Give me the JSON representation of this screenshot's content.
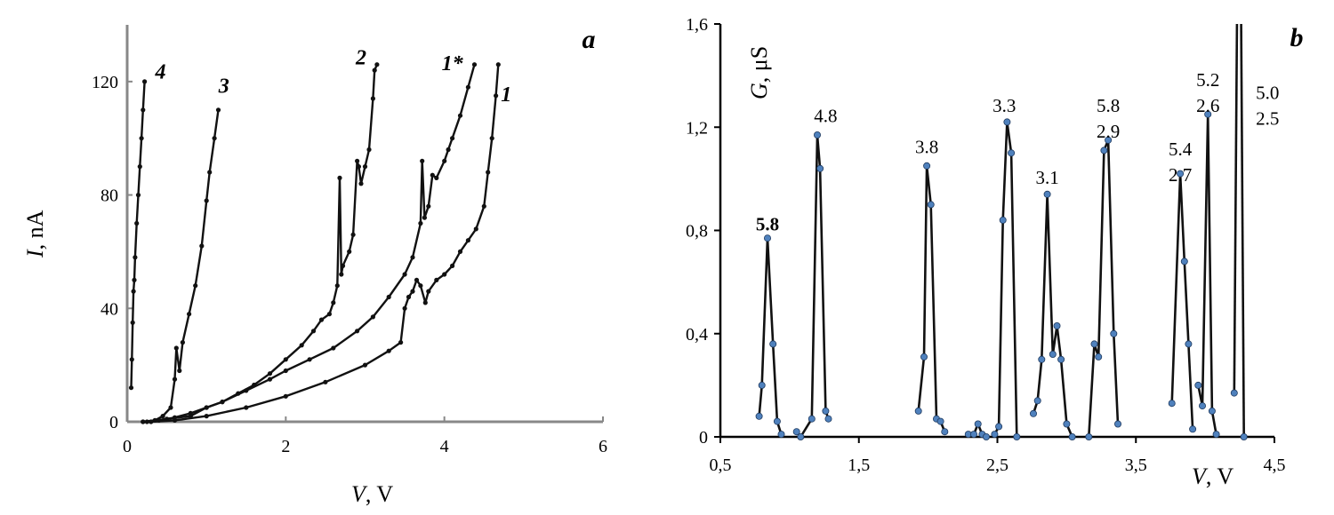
{
  "chart_data": [
    {
      "type": "line",
      "panel_label": "a",
      "xlabel_var": "V",
      "xlabel_unit": ", V",
      "ylabel_var": "I",
      "ylabel_unit": ", nA",
      "xlim": [
        0,
        6
      ],
      "ylim": [
        0,
        140
      ],
      "xticks": [
        0,
        2,
        4,
        6
      ],
      "yticks": [
        0,
        40,
        80,
        120
      ],
      "xtick_labels": [
        "0",
        "2",
        "4",
        "6"
      ],
      "ytick_labels": [
        "0",
        "40",
        "80",
        "120"
      ],
      "series": [
        {
          "name": "4",
          "points": [
            [
              0.05,
              12
            ],
            [
              0.06,
              22
            ],
            [
              0.07,
              35
            ],
            [
              0.08,
              46
            ],
            [
              0.09,
              50
            ],
            [
              0.1,
              58
            ],
            [
              0.12,
              70
            ],
            [
              0.14,
              80
            ],
            [
              0.16,
              90
            ],
            [
              0.18,
              100
            ],
            [
              0.2,
              110
            ],
            [
              0.22,
              120
            ]
          ]
        },
        {
          "name": "3",
          "points": [
            [
              0.25,
              0
            ],
            [
              0.35,
              0.5
            ],
            [
              0.45,
              2
            ],
            [
              0.55,
              5
            ],
            [
              0.6,
              15
            ],
            [
              0.62,
              26
            ],
            [
              0.66,
              18
            ],
            [
              0.7,
              28
            ],
            [
              0.78,
              38
            ],
            [
              0.86,
              48
            ],
            [
              0.94,
              62
            ],
            [
              1.0,
              78
            ],
            [
              1.04,
              88
            ],
            [
              1.1,
              100
            ],
            [
              1.15,
              110
            ]
          ]
        },
        {
          "name": "2",
          "points": [
            [
              0.2,
              0
            ],
            [
              0.4,
              0.5
            ],
            [
              0.6,
              1.5
            ],
            [
              0.8,
              3
            ],
            [
              1.0,
              5
            ],
            [
              1.2,
              7
            ],
            [
              1.4,
              10
            ],
            [
              1.6,
              13
            ],
            [
              1.8,
              17
            ],
            [
              2.0,
              22
            ],
            [
              2.2,
              27
            ],
            [
              2.35,
              32
            ],
            [
              2.45,
              36
            ],
            [
              2.55,
              38
            ],
            [
              2.6,
              42
            ],
            [
              2.65,
              48
            ],
            [
              2.68,
              86
            ],
            [
              2.7,
              52
            ],
            [
              2.72,
              55
            ],
            [
              2.8,
              60
            ],
            [
              2.85,
              66
            ],
            [
              2.9,
              92
            ],
            [
              2.92,
              90
            ],
            [
              2.95,
              84
            ],
            [
              3.0,
              90
            ],
            [
              3.05,
              96
            ],
            [
              3.1,
              114
            ],
            [
              3.12,
              124
            ],
            [
              3.15,
              126
            ]
          ]
        },
        {
          "name": "1*",
          "points": [
            [
              0.2,
              0
            ],
            [
              0.5,
              1
            ],
            [
              0.8,
              2
            ],
            [
              1.0,
              5
            ],
            [
              1.2,
              7
            ],
            [
              1.5,
              11
            ],
            [
              1.8,
              15
            ],
            [
              2.0,
              18
            ],
            [
              2.3,
              22
            ],
            [
              2.6,
              26
            ],
            [
              2.9,
              32
            ],
            [
              3.1,
              37
            ],
            [
              3.3,
              44
            ],
            [
              3.5,
              52
            ],
            [
              3.6,
              58
            ],
            [
              3.7,
              70
            ],
            [
              3.72,
              92
            ],
            [
              3.75,
              72
            ],
            [
              3.8,
              76
            ],
            [
              3.85,
              87
            ],
            [
              3.9,
              86
            ],
            [
              4.0,
              92
            ],
            [
              4.05,
              96
            ],
            [
              4.1,
              100
            ],
            [
              4.2,
              108
            ],
            [
              4.3,
              118
            ],
            [
              4.38,
              126
            ]
          ]
        },
        {
          "name": "1",
          "points": [
            [
              0.3,
              0
            ],
            [
              0.6,
              0.5
            ],
            [
              1.0,
              2
            ],
            [
              1.5,
              5
            ],
            [
              2.0,
              9
            ],
            [
              2.5,
              14
            ],
            [
              3.0,
              20
            ],
            [
              3.3,
              25
            ],
            [
              3.45,
              28
            ],
            [
              3.5,
              40
            ],
            [
              3.55,
              44
            ],
            [
              3.6,
              46
            ],
            [
              3.65,
              50
            ],
            [
              3.7,
              48
            ],
            [
              3.76,
              42
            ],
            [
              3.8,
              46
            ],
            [
              3.9,
              50
            ],
            [
              4.0,
              52
            ],
            [
              4.1,
              55
            ],
            [
              4.2,
              60
            ],
            [
              4.3,
              64
            ],
            [
              4.4,
              68
            ],
            [
              4.5,
              76
            ],
            [
              4.55,
              88
            ],
            [
              4.6,
              100
            ],
            [
              4.65,
              115
            ],
            [
              4.68,
              126
            ]
          ]
        }
      ],
      "curve_labels": [
        {
          "text": "4",
          "x": 0.42,
          "y": 121
        },
        {
          "text": "3",
          "x": 1.22,
          "y": 116
        },
        {
          "text": "2",
          "x": 2.95,
          "y": 126
        },
        {
          "text": "1*",
          "x": 4.1,
          "y": 124
        },
        {
          "text": "1",
          "x": 4.78,
          "y": 113
        }
      ]
    },
    {
      "type": "line",
      "panel_label": "b",
      "xlabel_var": "V",
      "xlabel_unit": ", V",
      "ylabel_var": "G",
      "ylabel_unit": ", μS",
      "xlim": [
        0.5,
        4.5
      ],
      "ylim": [
        0,
        1.6
      ],
      "xticks": [
        0.5,
        1.5,
        2.5,
        3.5,
        4.5
      ],
      "yticks": [
        0,
        0.4,
        0.8,
        1.2,
        1.6
      ],
      "xtick_labels": [
        "0,5",
        "1,5",
        "2,5",
        "3,5",
        "4,5"
      ],
      "ytick_labels": [
        "0",
        "0,4",
        "0,8",
        "1,2",
        "1,6"
      ],
      "segments": [
        [
          [
            0.78,
            0.08
          ],
          [
            0.8,
            0.2
          ],
          [
            0.84,
            0.77
          ],
          [
            0.88,
            0.36
          ],
          [
            0.91,
            0.06
          ],
          [
            0.94,
            0.01
          ]
        ],
        [
          [
            1.05,
            0.02
          ],
          [
            1.08,
            0.0
          ],
          [
            1.16,
            0.07
          ],
          [
            1.2,
            1.17
          ],
          [
            1.22,
            1.04
          ],
          [
            1.26,
            0.1
          ],
          [
            1.28,
            0.07
          ]
        ],
        [
          [
            1.93,
            0.1
          ],
          [
            1.97,
            0.31
          ],
          [
            1.99,
            1.05
          ],
          [
            2.02,
            0.9
          ],
          [
            2.06,
            0.07
          ],
          [
            2.09,
            0.06
          ],
          [
            2.12,
            0.02
          ]
        ],
        [
          [
            2.29,
            0.01
          ],
          [
            2.33,
            0.01
          ],
          [
            2.36,
            0.05
          ],
          [
            2.39,
            0.01
          ],
          [
            2.42,
            0.0
          ]
        ],
        [
          [
            2.48,
            0.01
          ],
          [
            2.51,
            0.04
          ],
          [
            2.54,
            0.84
          ],
          [
            2.57,
            1.22
          ],
          [
            2.6,
            1.1
          ],
          [
            2.64,
            0.0
          ]
        ],
        [
          [
            2.76,
            0.09
          ],
          [
            2.79,
            0.14
          ],
          [
            2.82,
            0.3
          ],
          [
            2.86,
            0.94
          ],
          [
            2.9,
            0.32
          ],
          [
            2.93,
            0.43
          ],
          [
            2.96,
            0.3
          ],
          [
            3.0,
            0.05
          ],
          [
            3.04,
            0.0
          ]
        ],
        [
          [
            3.16,
            0.0
          ],
          [
            3.2,
            0.36
          ],
          [
            3.23,
            0.31
          ],
          [
            3.27,
            1.11
          ],
          [
            3.3,
            1.15
          ],
          [
            3.34,
            0.4
          ],
          [
            3.37,
            0.05
          ]
        ],
        [
          [
            3.76,
            0.13
          ],
          [
            3.82,
            1.02
          ],
          [
            3.85,
            0.68
          ],
          [
            3.88,
            0.36
          ],
          [
            3.91,
            0.03
          ]
        ],
        [
          [
            3.95,
            0.2
          ],
          [
            3.98,
            0.12
          ],
          [
            4.02,
            1.25
          ],
          [
            4.05,
            0.1
          ],
          [
            4.08,
            0.01
          ]
        ],
        [
          [
            4.21,
            0.17
          ],
          [
            4.23,
            1.6
          ]
        ],
        [
          [
            4.26,
            1.6
          ],
          [
            4.28,
            0.0
          ]
        ]
      ],
      "peak_labels": [
        {
          "lines": [
            "5.8"
          ],
          "x": 0.84,
          "y": 0.8,
          "bold": true
        },
        {
          "lines": [
            "4.8"
          ],
          "x": 1.26,
          "y": 1.22,
          "bold": false
        },
        {
          "lines": [
            "3.8"
          ],
          "x": 1.99,
          "y": 1.1,
          "bold": false
        },
        {
          "lines": [
            "3.3"
          ],
          "x": 2.55,
          "y": 1.26,
          "bold": false
        },
        {
          "lines": [
            "3.1"
          ],
          "x": 2.86,
          "y": 0.98,
          "bold": false
        },
        {
          "lines": [
            "5.8",
            "2.9"
          ],
          "x": 3.3,
          "y": 1.26,
          "bold": false
        },
        {
          "lines": [
            "5.4",
            "2.7"
          ],
          "x": 3.82,
          "y": 1.09,
          "bold": false
        },
        {
          "lines": [
            "5.2",
            "2.6"
          ],
          "x": 4.02,
          "y": 1.36,
          "bold": false
        },
        {
          "lines": [
            "5.0",
            "2.5"
          ],
          "x": 4.45,
          "y": 1.31,
          "bold": false
        }
      ]
    }
  ]
}
